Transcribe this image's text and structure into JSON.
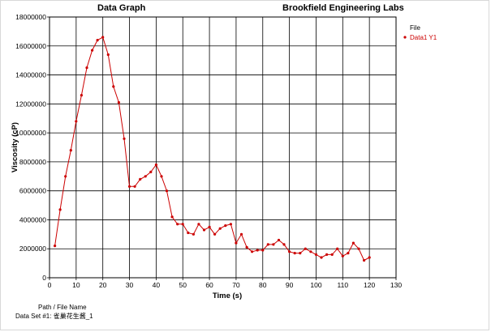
{
  "header": {
    "left_title": "Data Graph",
    "right_title": "Brookfield Engineering Labs"
  },
  "legend": {
    "heading": "File",
    "placement": "top-right"
  },
  "footer": {
    "path_label": "Path / File Name",
    "dataset_label": "Data Set #1: 雀巢花生酱_1"
  },
  "colors": {
    "series": "#cc0000",
    "grid": "#000000",
    "axis": "#000000"
  },
  "chart_data": {
    "type": "line",
    "title": "Data Graph",
    "xlabel": "Time (s)",
    "ylabel": "Viscosity (cP)",
    "xlim": [
      0,
      130
    ],
    "ylim": [
      0,
      18000000
    ],
    "x_ticks": [
      0,
      10,
      20,
      30,
      40,
      50,
      60,
      70,
      80,
      90,
      100,
      110,
      120,
      130
    ],
    "y_ticks": [
      0,
      2000000,
      4000000,
      6000000,
      8000000,
      10000000,
      12000000,
      14000000,
      16000000,
      18000000
    ],
    "grid": true,
    "series": [
      {
        "name": "Data1 Y1",
        "x": [
          2,
          4,
          6,
          8,
          10,
          12,
          14,
          16,
          18,
          20,
          22,
          24,
          26,
          28,
          30,
          32,
          34,
          36,
          38,
          40,
          42,
          44,
          46,
          48,
          50,
          52,
          54,
          56,
          58,
          60,
          62,
          64,
          66,
          68,
          70,
          72,
          74,
          76,
          78,
          80,
          82,
          84,
          86,
          88,
          90,
          92,
          94,
          96,
          98,
          100,
          102,
          104,
          106,
          108,
          110,
          112,
          114,
          116,
          118,
          120
        ],
        "y": [
          2200000,
          4700000,
          7000000,
          8800000,
          10800000,
          12600000,
          14500000,
          15700000,
          16400000,
          16600000,
          15400000,
          13200000,
          12100000,
          9600000,
          6300000,
          6300000,
          6800000,
          7000000,
          7300000,
          7800000,
          7000000,
          6000000,
          4200000,
          3700000,
          3700000,
          3100000,
          3000000,
          3700000,
          3300000,
          3500000,
          3000000,
          3400000,
          3600000,
          3700000,
          2400000,
          3000000,
          2100000,
          1800000,
          1900000,
          1900000,
          2300000,
          2300000,
          2600000,
          2300000,
          1800000,
          1700000,
          1700000,
          2000000,
          1800000,
          1600000,
          1400000,
          1600000,
          1600000,
          2000000,
          1500000,
          1700000,
          2400000,
          2000000,
          1200000,
          1400000
        ]
      }
    ]
  }
}
